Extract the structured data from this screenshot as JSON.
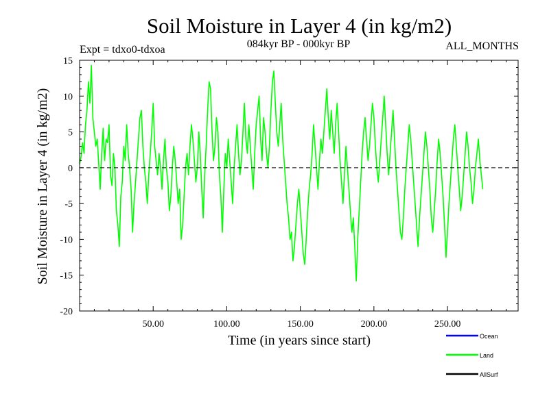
{
  "chart_data": {
    "type": "line",
    "title": "Soil Moisture in Layer 4 (in kg/m2)",
    "subtitle_left": "Expt = tdxo0-tdxoa",
    "subtitle_center": "084kyr BP - 000kyr BP",
    "subtitle_right": "ALL_MONTHS",
    "xlabel": "Time (in years since start)",
    "ylabel": "Soil Moisture in Layer 4 (in kg/m2)",
    "xlim": [
      0,
      298
    ],
    "ylim": [
      -20,
      15
    ],
    "x_ticks": [
      50,
      100,
      150,
      200,
      250
    ],
    "x_tick_labels": [
      "50.00",
      "100.00",
      "150.00",
      "200.00",
      "250.00"
    ],
    "y_ticks": [
      -20,
      -15,
      -10,
      -5,
      0,
      5,
      10,
      15
    ],
    "y_tick_labels": [
      "-20",
      "-15",
      "-10",
      "-5",
      "0",
      "5",
      "10",
      "15"
    ],
    "zero_line": "dashed",
    "grid": false,
    "legend_position": "bottom-right",
    "legend": [
      {
        "name": "Ocean",
        "color": "#0000ff"
      },
      {
        "name": "Land",
        "color": "#00ff00"
      },
      {
        "name": "AllSurf",
        "color": "#000000"
      }
    ],
    "series": [
      {
        "name": "Land",
        "color": "#00ff00",
        "x_start": 0,
        "x_step": 1,
        "values": [
          0.5,
          1.5,
          3.5,
          2.0,
          6.0,
          8.0,
          12.0,
          9.0,
          14.3,
          7.0,
          5.0,
          3.0,
          4.0,
          0.5,
          -3.0,
          2.0,
          5.5,
          1.0,
          4.0,
          3.5,
          6.0,
          -1.0,
          -2.5,
          2.0,
          0.0,
          -6.0,
          -8.0,
          -11.0,
          -4.0,
          -2.0,
          3.0,
          1.0,
          6.0,
          2.0,
          0.0,
          -3.0,
          -9.0,
          -5.0,
          -2.0,
          1.0,
          4.0,
          7.0,
          8.0,
          3.0,
          0.0,
          -2.0,
          -5.0,
          -1.0,
          2.0,
          5.0,
          9.0,
          3.0,
          1.0,
          -1.0,
          2.0,
          0.0,
          -3.0,
          1.0,
          4.0,
          0.0,
          -2.0,
          -6.0,
          -4.0,
          0.0,
          3.0,
          1.0,
          -2.0,
          -5.0,
          -3.0,
          -10.0,
          -8.0,
          -4.0,
          0.0,
          2.0,
          -1.0,
          3.0,
          6.0,
          4.0,
          1.0,
          -2.0,
          0.0,
          5.0,
          2.0,
          -3.0,
          -7.0,
          -1.0,
          3.0,
          8.0,
          12.0,
          11.0,
          5.0,
          1.0,
          3.0,
          7.0,
          5.0,
          -1.0,
          -4.0,
          -9.0,
          -3.0,
          2.0,
          0.0,
          4.0,
          1.0,
          -2.0,
          -5.0,
          0.0,
          3.0,
          6.0,
          2.0,
          -1.0,
          1.0,
          5.0,
          9.0,
          4.0,
          2.0,
          6.0,
          3.0,
          0.0,
          -3.0,
          2.0,
          6.0,
          8.0,
          10.0,
          4.0,
          1.0,
          7.0,
          5.0,
          2.0,
          0.0,
          3.0,
          8.0,
          12.0,
          13.5,
          9.0,
          5.0,
          3.0,
          6.0,
          9.0,
          4.0,
          1.0,
          -2.0,
          -5.0,
          -7.0,
          -10.0,
          -9.0,
          -13.0,
          -11.0,
          -8.0,
          -5.0,
          -3.0,
          -6.0,
          -9.0,
          -12.0,
          -13.5,
          -10.0,
          -6.0,
          -3.0,
          -1.0,
          2.0,
          6.0,
          3.0,
          0.0,
          -3.0,
          1.0,
          4.0,
          2.0,
          5.0,
          8.0,
          11.0,
          7.0,
          4.0,
          8.0,
          5.0,
          2.0,
          6.0,
          9.0,
          5.0,
          1.0,
          -2.0,
          -5.0,
          -1.0,
          3.0,
          0.0,
          -3.0,
          -6.0,
          -9.0,
          -7.0,
          -11.0,
          -15.8,
          -10.0,
          -6.0,
          -2.0,
          2.0,
          5.0,
          7.0,
          4.0,
          1.0,
          3.0,
          6.0,
          9.0,
          7.0,
          3.0,
          0.0,
          -2.0,
          1.0,
          4.0,
          7.0,
          10.0,
          6.0,
          2.0,
          -1.0,
          2.0,
          5.0,
          8.0,
          4.0,
          0.0,
          -3.0,
          -6.0,
          -9.0,
          -10.0,
          -7.0,
          -3.0,
          0.0,
          3.0,
          6.0,
          4.0,
          1.0,
          -2.0,
          -5.0,
          -8.0,
          -11.0,
          -7.0,
          -4.0,
          -1.0,
          2.0,
          5.0,
          3.0,
          0.0,
          -3.0,
          -7.0,
          -9.0,
          -6.0,
          -3.0,
          1.0,
          4.0,
          2.0,
          -1.0,
          -4.0,
          -8.0,
          -12.5,
          -9.0,
          -5.0,
          -2.0,
          1.0,
          4.0,
          6.0,
          3.0,
          0.0,
          -3.0,
          -6.0,
          -4.0,
          -1.0,
          2.0,
          5.0,
          3.0,
          0.0,
          -2.0,
          -5.0,
          -3.0,
          0.0,
          2.0,
          4.0,
          1.0,
          -1.0,
          -3.0
        ]
      }
    ]
  }
}
